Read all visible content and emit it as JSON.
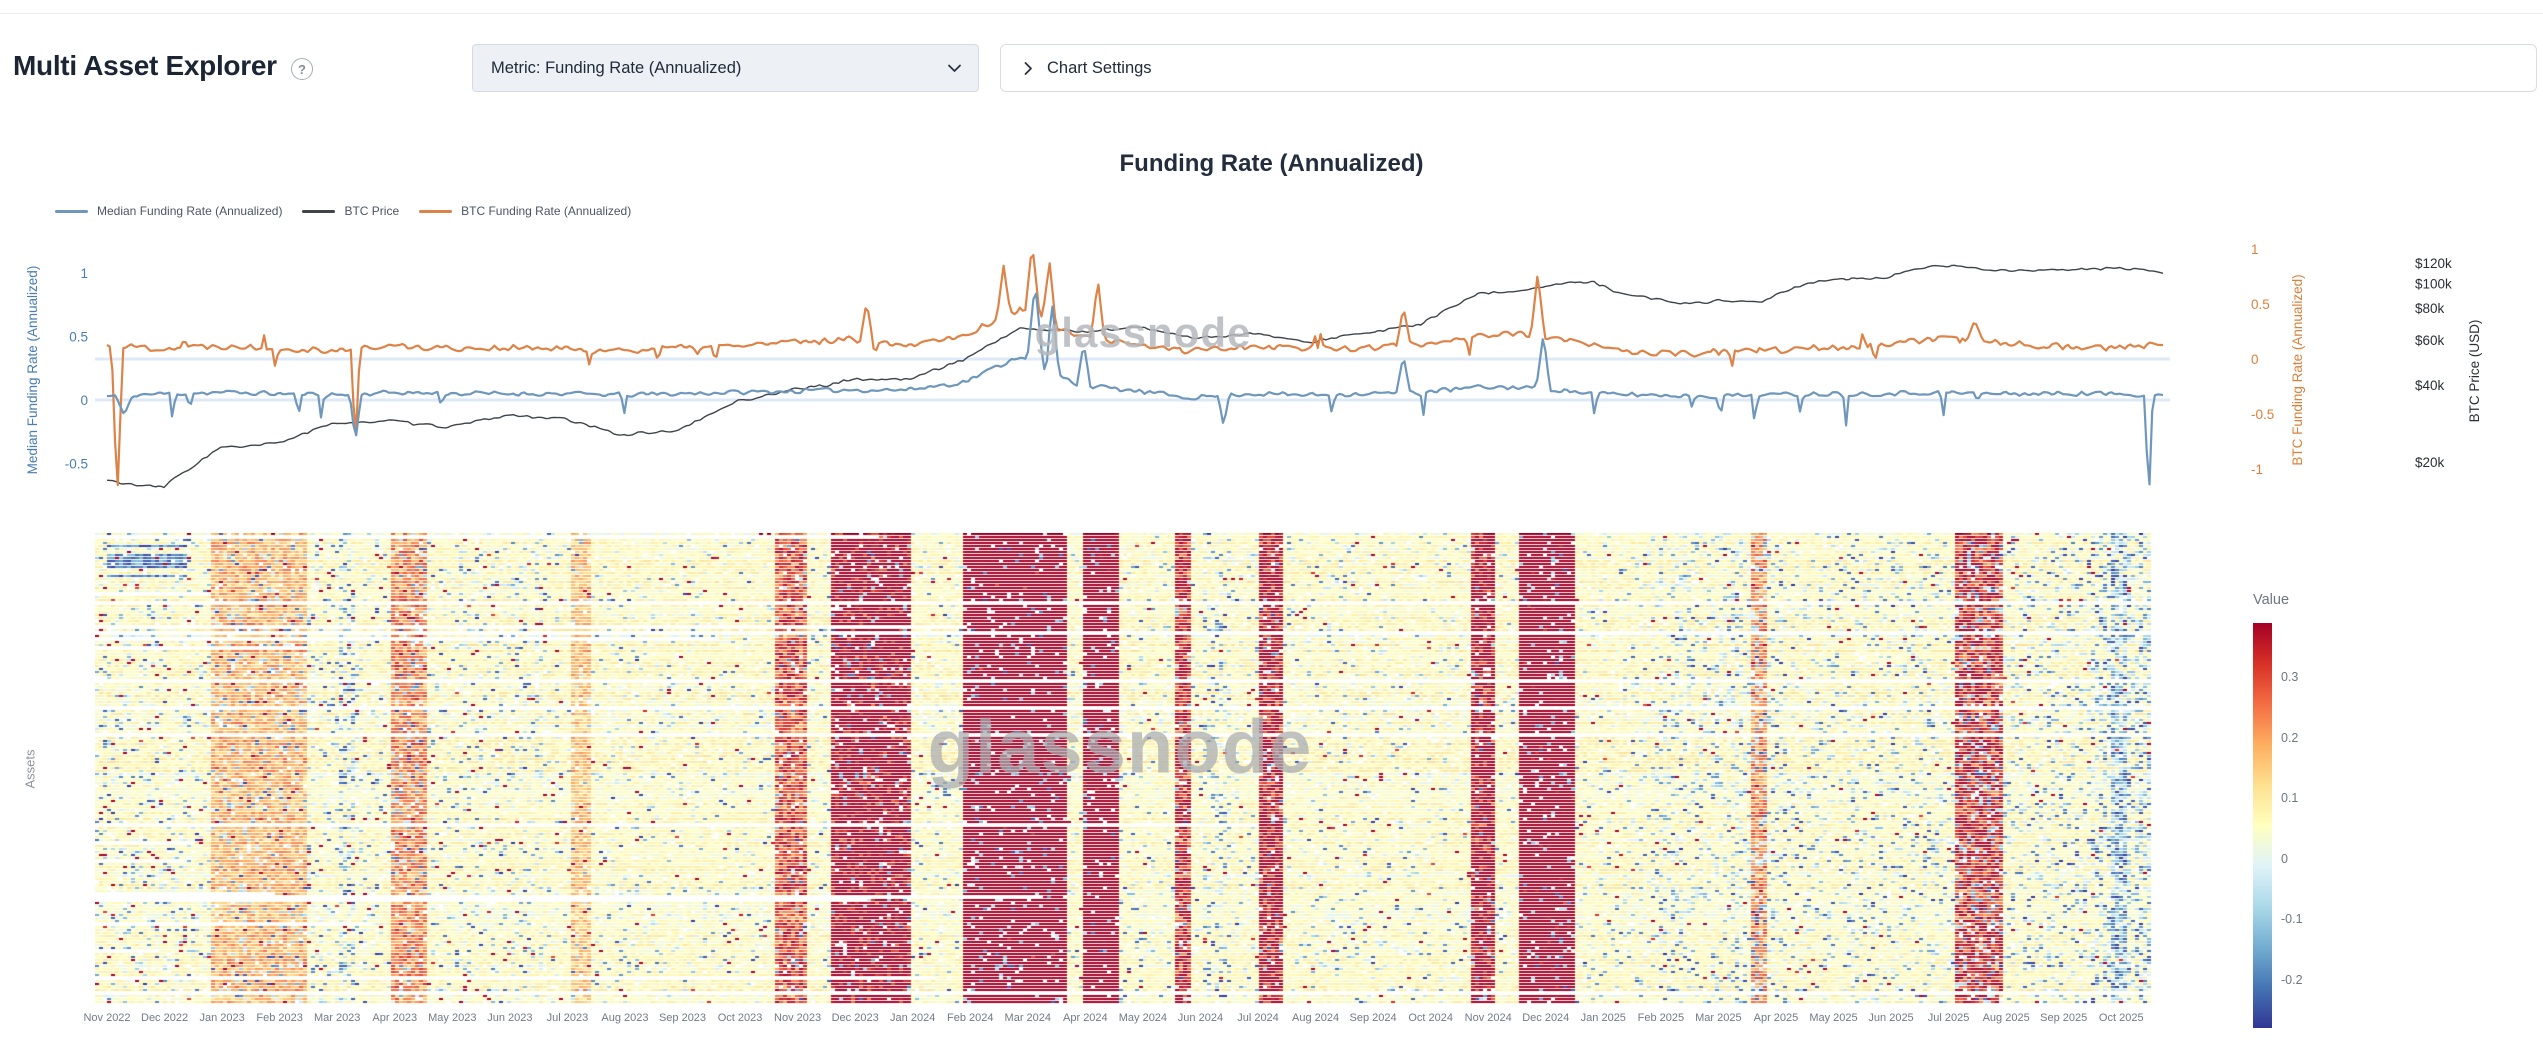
{
  "header": {
    "page_title": "Multi Asset Explorer",
    "help_icon": "?",
    "metric_dropdown": {
      "value": "Metric: Funding Rate (Annualized)"
    },
    "chart_settings": {
      "label": "Chart Settings"
    }
  },
  "watermark_text": "glassnode",
  "chart_data": [
    {
      "type": "line",
      "title": "Funding Rate (Annualized)",
      "x_months": [
        "Nov 2022",
        "Dec 2022",
        "Jan 2023",
        "Feb 2023",
        "Mar 2023",
        "Apr 2023",
        "May 2023",
        "Jun 2023",
        "Jul 2023",
        "Aug 2023",
        "Sep 2023",
        "Oct 2023",
        "Nov 2023",
        "Dec 2023",
        "Jan 2024",
        "Feb 2024",
        "Mar 2024",
        "Apr 2024",
        "May 2024",
        "Jun 2024",
        "Jul 2024",
        "Aug 2024",
        "Sep 2024",
        "Oct 2024",
        "Nov 2024",
        "Dec 2024",
        "Jan 2025",
        "Feb 2025",
        "Mar 2025",
        "Apr 2025",
        "May 2025",
        "Jun 2025",
        "Jul 2025",
        "Aug 2025",
        "Sep 2025",
        "Oct 2025"
      ],
      "series": [
        {
          "name": "Median Funding Rate (Annualized)",
          "axis": "left",
          "color": "#6f97bc",
          "monthly_values": [
            0.03,
            0.05,
            0.06,
            0.05,
            0.04,
            0.06,
            0.05,
            0.05,
            0.05,
            0.04,
            0.05,
            0.06,
            0.07,
            0.08,
            0.08,
            0.14,
            0.35,
            0.12,
            0.07,
            0.02,
            0.05,
            0.04,
            0.05,
            0.06,
            0.1,
            0.1,
            0.05,
            0.04,
            0.03,
            0.04,
            0.05,
            0.05,
            0.06,
            0.05,
            0.05,
            0.05,
            0.04
          ],
          "spikes": [
            {
              "m": 0.3,
              "v": -0.12,
              "w": 0.15
            },
            {
              "m": 4.35,
              "v": -0.33,
              "w": 0.1
            },
            {
              "m": 16.25,
              "v": 0.92,
              "w": 0.14
            },
            {
              "m": 16.55,
              "v": 0.75,
              "w": 0.12
            },
            {
              "m": 17.1,
              "v": 0.45,
              "w": 0.12
            },
            {
              "m": 19.55,
              "v": -0.2,
              "w": 0.1
            },
            {
              "m": 22.7,
              "v": 0.35,
              "w": 0.12
            },
            {
              "m": 25.15,
              "v": 0.52,
              "w": 0.12
            },
            {
              "m": 35.75,
              "v": -0.82,
              "w": 0.07
            }
          ]
        },
        {
          "name": "BTC Price",
          "axis": "price_log",
          "color": "#3f444b",
          "monthly_values_kusd": [
            17.0,
            16.0,
            23.0,
            23.5,
            28.0,
            29.5,
            27.0,
            30.5,
            29.3,
            26.0,
            27.0,
            34.5,
            37.8,
            42.5,
            42.5,
            51.0,
            68.0,
            64.0,
            67.5,
            61.5,
            64.0,
            59.0,
            63.5,
            69.0,
            91.0,
            97.0,
            102.0,
            86.0,
            84.0,
            85.0,
            104.0,
            105.0,
            116.0,
            113.0,
            112.0,
            115.0,
            110.0
          ]
        },
        {
          "name": "BTC Funding Rate (Annualized)",
          "axis": "right",
          "color": "#dd8348",
          "monthly_values": [
            0.12,
            0.1,
            0.12,
            0.1,
            0.08,
            0.12,
            0.1,
            0.1,
            0.09,
            0.08,
            0.1,
            0.12,
            0.15,
            0.18,
            0.13,
            0.22,
            0.45,
            0.2,
            0.12,
            0.08,
            0.12,
            0.1,
            0.1,
            0.13,
            0.22,
            0.22,
            0.12,
            0.05,
            0.05,
            0.08,
            0.1,
            0.12,
            0.18,
            0.16,
            0.12,
            0.1,
            0.13
          ],
          "spikes": [
            {
              "m": 0.18,
              "v": -1.28,
              "w": 0.1
            },
            {
              "m": 4.35,
              "v": -0.8,
              "w": 0.08
            },
            {
              "m": 13.3,
              "v": 0.52,
              "w": 0.12
            },
            {
              "m": 15.7,
              "v": 0.85,
              "w": 0.12
            },
            {
              "m": 16.2,
              "v": 1.05,
              "w": 0.13
            },
            {
              "m": 16.5,
              "v": 0.9,
              "w": 0.12
            },
            {
              "m": 17.35,
              "v": 0.72,
              "w": 0.12
            },
            {
              "m": 22.7,
              "v": 0.48,
              "w": 0.12
            },
            {
              "m": 25.05,
              "v": 0.78,
              "w": 0.12
            },
            {
              "m": 32.7,
              "v": 0.35,
              "w": 0.15
            }
          ]
        }
      ],
      "axes": {
        "left": {
          "title": "Median Funding Rate (Annualized)",
          "color": "#4a7db3",
          "ticks": [
            1,
            0.5,
            0,
            -0.5
          ]
        },
        "right": {
          "title": "BTC Funding Rate (Annualized)",
          "color": "#dc7f39",
          "ticks": [
            1,
            0.5,
            0,
            -0.5,
            -1
          ]
        },
        "price": {
          "title": "BTC Price (USD)",
          "color": "#2a2f36",
          "scale": "log",
          "tick_labels": [
            "$120k",
            "$100k",
            "$80k",
            "$60k",
            "$40k",
            "$20k"
          ],
          "tick_values_kusd": [
            120,
            100,
            80,
            60,
            40,
            20
          ]
        }
      }
    },
    {
      "type": "heatmap",
      "ylabel": "Assets",
      "x_labels": [
        "Nov 2022",
        "Dec 2022",
        "Jan 2023",
        "Feb 2023",
        "Mar 2023",
        "Apr 2023",
        "May 2023",
        "Jun 2023",
        "Jul 2023",
        "Aug 2023",
        "Sep 2023",
        "Oct 2023",
        "Nov 2023",
        "Dec 2023",
        "Jan 2024",
        "Feb 2024",
        "Mar 2024",
        "Apr 2024",
        "May 2024",
        "Jun 2024",
        "Jul 2024",
        "Aug 2024",
        "Sep 2024",
        "Oct 2024",
        "Nov 2024",
        "Dec 2024",
        "Jan 2025",
        "Feb 2025",
        "Mar 2025",
        "Apr 2025",
        "May 2025",
        "Jun 2025",
        "Jul 2025",
        "Aug 2025",
        "Sep 2025",
        "Oct 2025"
      ],
      "rows_approx": 150,
      "base_value": 0.055,
      "colorbar": {
        "title": "Value",
        "tick_values": [
          0.3,
          0.2,
          0.1,
          0,
          -0.1,
          -0.2
        ],
        "value_range": [
          -0.28,
          0.39
        ],
        "palette_high_to_low": [
          "#a50026",
          "#d73027",
          "#f46d43",
          "#fdae61",
          "#fee090",
          "#ffffbf",
          "#e0f3f8",
          "#abd9e9",
          "#74add1",
          "#4575b4",
          "#313695"
        ]
      },
      "hot_bands": [
        {
          "from_m": 2.0,
          "to_m": 3.7,
          "strength": 0.14
        },
        {
          "from_m": 5.2,
          "to_m": 5.8,
          "strength": 0.2
        },
        {
          "from_m": 8.3,
          "to_m": 8.7,
          "strength": 0.12
        },
        {
          "from_m": 11.9,
          "to_m": 12.5,
          "strength": 0.28
        },
        {
          "from_m": 12.9,
          "to_m": 14.3,
          "strength": 0.5
        },
        {
          "from_m": 15.2,
          "to_m": 17.0,
          "strength": 0.92
        },
        {
          "from_m": 17.3,
          "to_m": 17.9,
          "strength": 0.72
        },
        {
          "from_m": 18.9,
          "to_m": 19.2,
          "strength": 0.35
        },
        {
          "from_m": 20.4,
          "to_m": 20.8,
          "strength": 0.42
        },
        {
          "from_m": 24.1,
          "to_m": 24.5,
          "strength": 0.45
        },
        {
          "from_m": 24.9,
          "to_m": 25.9,
          "strength": 0.7
        },
        {
          "from_m": 29.0,
          "to_m": 29.3,
          "strength": 0.2
        },
        {
          "from_m": 32.6,
          "to_m": 33.4,
          "strength": 0.33
        }
      ],
      "cold_bands": [
        {
          "from_m": 0.2,
          "to_m": 1.6,
          "strength": 0.55,
          "top_rows": 16
        },
        {
          "from_m": 4.3,
          "to_m": 4.55,
          "strength": 0.5
        },
        {
          "from_m": 19.4,
          "to_m": 19.9,
          "strength": 0.3
        },
        {
          "from_m": 27.3,
          "to_m": 29.6,
          "strength": 0.18
        },
        {
          "from_m": 35.3,
          "to_m": 35.6,
          "strength": 0.8
        }
      ]
    }
  ]
}
